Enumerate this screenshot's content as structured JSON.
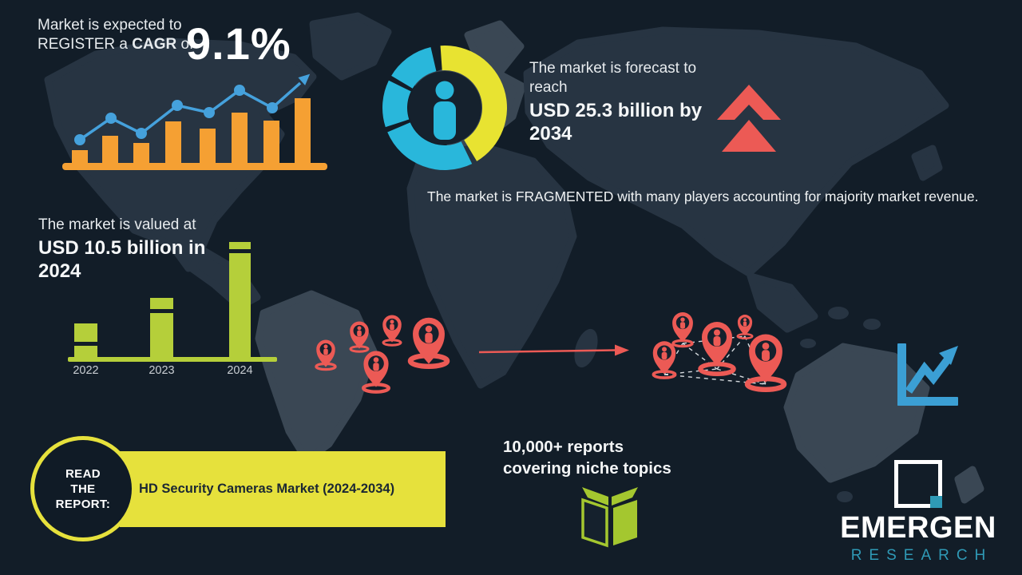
{
  "title": "HD Security Cameras Market infographic",
  "colors": {
    "background": "#121d28",
    "map": "#273442",
    "map_light": "#3a4754",
    "orange": "#f5a033",
    "blue": "#45a1dc",
    "cyan": "#29b7db",
    "yellow": "#e8e331",
    "green": "#b5cf3a",
    "book_green": "#a4c72f",
    "red": "#ec5a55",
    "banner_yellow": "#e6e13c",
    "banner_text": "#1b2733",
    "teal": "#2f9ab6",
    "white": "#f2f4f6"
  },
  "cagr": {
    "line1": "Market is expected to",
    "line2_pre": "REGISTER a",
    "line2_bold": "CAGR",
    "line2_post": "of",
    "value": "9.1%"
  },
  "forecast": {
    "lead": "The market is forecast to reach",
    "value": "USD 25.3 billion by 2034"
  },
  "fragmented_text": "The market is FRAGMENTED with many players accounting for majority market revenue.",
  "valuation": {
    "lead": "The market is valued at",
    "value": "USD 10.5 billion in 2024"
  },
  "reports": {
    "line1": "10,000+ reports",
    "line2": "covering niche topics"
  },
  "read_report": {
    "circle_line1": "READ",
    "circle_line2": "THE",
    "circle_line3": "REPORT:",
    "banner": "HD Security Cameras Market (2024-2034)"
  },
  "logo": {
    "name": "EMERGEN",
    "subtitle": "RESEARCH"
  },
  "chart_data": [
    {
      "id": "growth-trend",
      "type": "bar",
      "title": "Stylized growth bar chart with rising trend line and arrow (no axis labels shown)",
      "categories": [
        "1",
        "2",
        "3",
        "4",
        "5",
        "6",
        "7",
        "8"
      ],
      "values": [
        18,
        36,
        27,
        54,
        45,
        65,
        55,
        83
      ],
      "unit": "relative height, px",
      "bar_color": "#f5a033",
      "line": {
        "color": "#45a1dc",
        "dot_y": [
          87,
          60,
          79,
          44,
          53,
          25,
          47
        ],
        "arrow_end": [
          302,
          12
        ]
      },
      "legend": "none",
      "grid": false
    },
    {
      "id": "market-share-donut",
      "type": "pie",
      "title": "Stylized donut with person pictogram (market fragmentation)",
      "segments": [
        {
          "label": "yellow-large",
          "color": "#e8e331",
          "start_deg": -4,
          "end_deg": 149
        },
        {
          "label": "cyan-large",
          "color": "#29b7db",
          "start_deg": 154,
          "end_deg": 247
        },
        {
          "label": "cyan-mid",
          "color": "#29b7db",
          "start_deg": 252,
          "end_deg": 296
        },
        {
          "label": "cyan-small",
          "color": "#29b7db",
          "start_deg": 301,
          "end_deg": 347
        }
      ],
      "legend": "none"
    },
    {
      "id": "market-value",
      "type": "bar",
      "title": "Market value by year (2024 bar = USD 10.5 billion per headline)",
      "categories": [
        "2022",
        "2023",
        "2024"
      ],
      "values": [
        42,
        74,
        144
      ],
      "unit": "relative height, px",
      "stripe_offsets": [
        23,
        14,
        9
      ],
      "bar_color": "#b5cf3a",
      "tick_label_color": "#c9ced3",
      "legend": "none",
      "grid": false
    }
  ]
}
